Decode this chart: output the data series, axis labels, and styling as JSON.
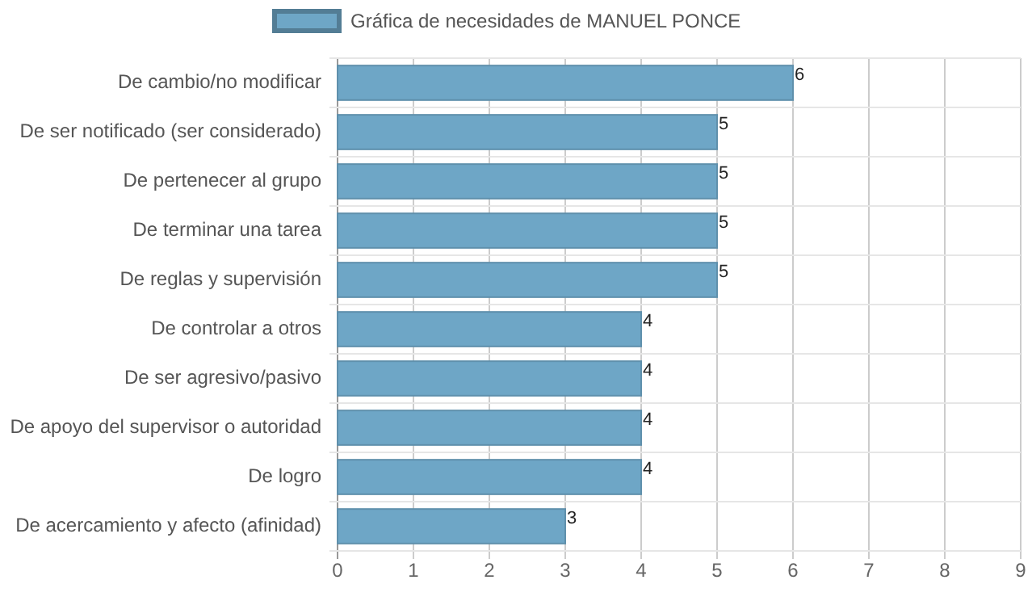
{
  "chart_data": {
    "type": "bar",
    "orientation": "horizontal",
    "categories": [
      "De cambio/no modificar",
      "De ser notificado (ser considerado)",
      "De pertenecer al grupo",
      "De terminar una tarea",
      "De reglas y supervisión",
      "De controlar a otros",
      "De ser agresivo/pasivo",
      "De apoyo del supervisor o autoridad",
      "De logro",
      "De acercamiento y afecto (afinidad)"
    ],
    "series": [
      {
        "name": "Gráfica de necesidades de MANUEL PONCE",
        "color": "#6ea6c6",
        "values": [
          6,
          5,
          5,
          5,
          5,
          4,
          4,
          4,
          4,
          3
        ]
      }
    ],
    "xlim": [
      0,
      9
    ],
    "xticks": [
      0,
      1,
      2,
      3,
      4,
      5,
      6,
      7,
      8,
      9
    ],
    "grid": true,
    "legend": "top",
    "data_labels": true
  }
}
